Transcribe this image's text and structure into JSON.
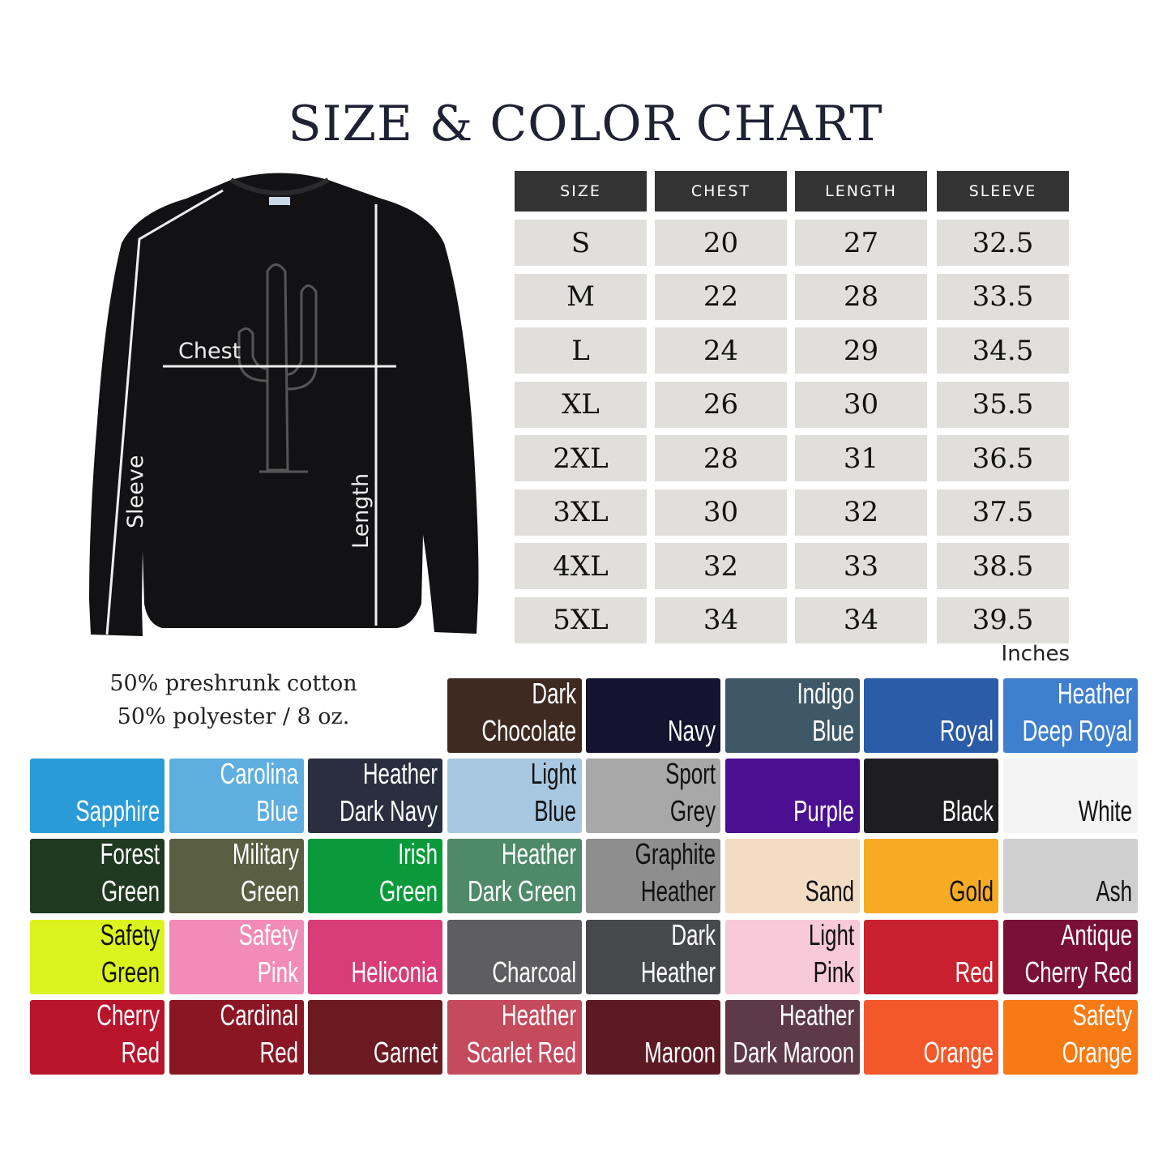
{
  "title": "SIZE & COLOR CHART",
  "table": {
    "headers": [
      "SIZE",
      "CHEST",
      "LENGTH",
      "SLEEVE"
    ],
    "rows": [
      [
        "S",
        "20",
        "27",
        "32.5"
      ],
      [
        "M",
        "22",
        "28",
        "33.5"
      ],
      [
        "L",
        "24",
        "29",
        "34.5"
      ],
      [
        "XL",
        "26",
        "30",
        "35.5"
      ],
      [
        "2XL",
        "28",
        "31",
        "36.5"
      ],
      [
        "3XL",
        "30",
        "32",
        "37.5"
      ],
      [
        "4XL",
        "32",
        "33",
        "38.5"
      ],
      [
        "5XL",
        "34",
        "34",
        "39.5"
      ]
    ],
    "unit": "Inches"
  },
  "garment": {
    "chest_label": "Chest",
    "sleeve_label": "Sleeve",
    "length_label": "Length"
  },
  "fabric": [
    "50% preshrunk cotton",
    "50% polyester / 8 oz."
  ],
  "colors": [
    {
      "name": "Dark\nChocolate",
      "hex": "#3e2a20",
      "text": "#fff"
    },
    {
      "name": "Navy",
      "hex": "#14142e",
      "text": "#fff"
    },
    {
      "name": "Indigo\nBlue",
      "hex": "#3f5868",
      "text": "#fff"
    },
    {
      "name": "Royal",
      "hex": "#2a5ca8",
      "text": "#fff"
    },
    {
      "name": "Heather\nDeep Royal",
      "hex": "#3e7fcf",
      "text": "#fff"
    },
    {
      "name": "Sapphire",
      "hex": "#2a9bd6",
      "text": "#fff"
    },
    {
      "name": "Carolina\nBlue",
      "hex": "#5eaee0",
      "text": "#fff"
    },
    {
      "name": "Heather\nDark Navy",
      "hex": "#2a2e3e",
      "text": "#fff"
    },
    {
      "name": "Light\nBlue",
      "hex": "#a8c8e2",
      "text": "#111"
    },
    {
      "name": "Sport\nGrey",
      "hex": "#a8a8a8",
      "text": "#111"
    },
    {
      "name": "Purple",
      "hex": "#4b1091",
      "text": "#fff"
    },
    {
      "name": "Black",
      "hex": "#1e1e20",
      "text": "#fff"
    },
    {
      "name": "White",
      "hex": "#f4f4f4",
      "text": "#111"
    },
    {
      "name": "Forest\nGreen",
      "hex": "#1f3a20",
      "text": "#fff"
    },
    {
      "name": "Military\nGreen",
      "hex": "#5a5e42",
      "text": "#fff"
    },
    {
      "name": "Irish\nGreen",
      "hex": "#0a9a3c",
      "text": "#fff"
    },
    {
      "name": "Heather\nDark Green",
      "hex": "#4e8a68",
      "text": "#fff"
    },
    {
      "name": "Graphite\nHeather",
      "hex": "#8e8e8e",
      "text": "#111"
    },
    {
      "name": "Sand",
      "hex": "#f2dcc4",
      "text": "#111"
    },
    {
      "name": "Gold",
      "hex": "#f7ab25",
      "text": "#111"
    },
    {
      "name": "Ash",
      "hex": "#cfcfcf",
      "text": "#111"
    },
    {
      "name": "Safety\nGreen",
      "hex": "#dcf41e",
      "text": "#111"
    },
    {
      "name": "Safety\nPink",
      "hex": "#f28bb8",
      "text": "#fff"
    },
    {
      "name": "Heliconia",
      "hex": "#d83d78",
      "text": "#fff"
    },
    {
      "name": "Charcoal",
      "hex": "#5e5e60",
      "text": "#fff"
    },
    {
      "name": "Dark\nHeather",
      "hex": "#47484c",
      "text": "#fff"
    },
    {
      "name": "Light\nPink",
      "hex": "#f8c9d8",
      "text": "#111"
    },
    {
      "name": "Red",
      "hex": "#c8202e",
      "text": "#fff"
    },
    {
      "name": "Antique\nCherry Red",
      "hex": "#7a0f38",
      "text": "#fff"
    },
    {
      "name": "Cherry\nRed",
      "hex": "#b8142c",
      "text": "#fff"
    },
    {
      "name": "Cardinal\nRed",
      "hex": "#8a1624",
      "text": "#fff"
    },
    {
      "name": "Garnet",
      "hex": "#6a1a20",
      "text": "#fff"
    },
    {
      "name": "Heather\nScarlet Red",
      "hex": "#c44a5c",
      "text": "#fff"
    },
    {
      "name": "Maroon",
      "hex": "#5c1a22",
      "text": "#fff"
    },
    {
      "name": "Heather\nDark Maroon",
      "hex": "#5e3a48",
      "text": "#fff"
    },
    {
      "name": "Orange",
      "hex": "#f2582a",
      "text": "#fff"
    },
    {
      "name": "Safety\nOrange",
      "hex": "#f77a14",
      "text": "#fff"
    }
  ]
}
